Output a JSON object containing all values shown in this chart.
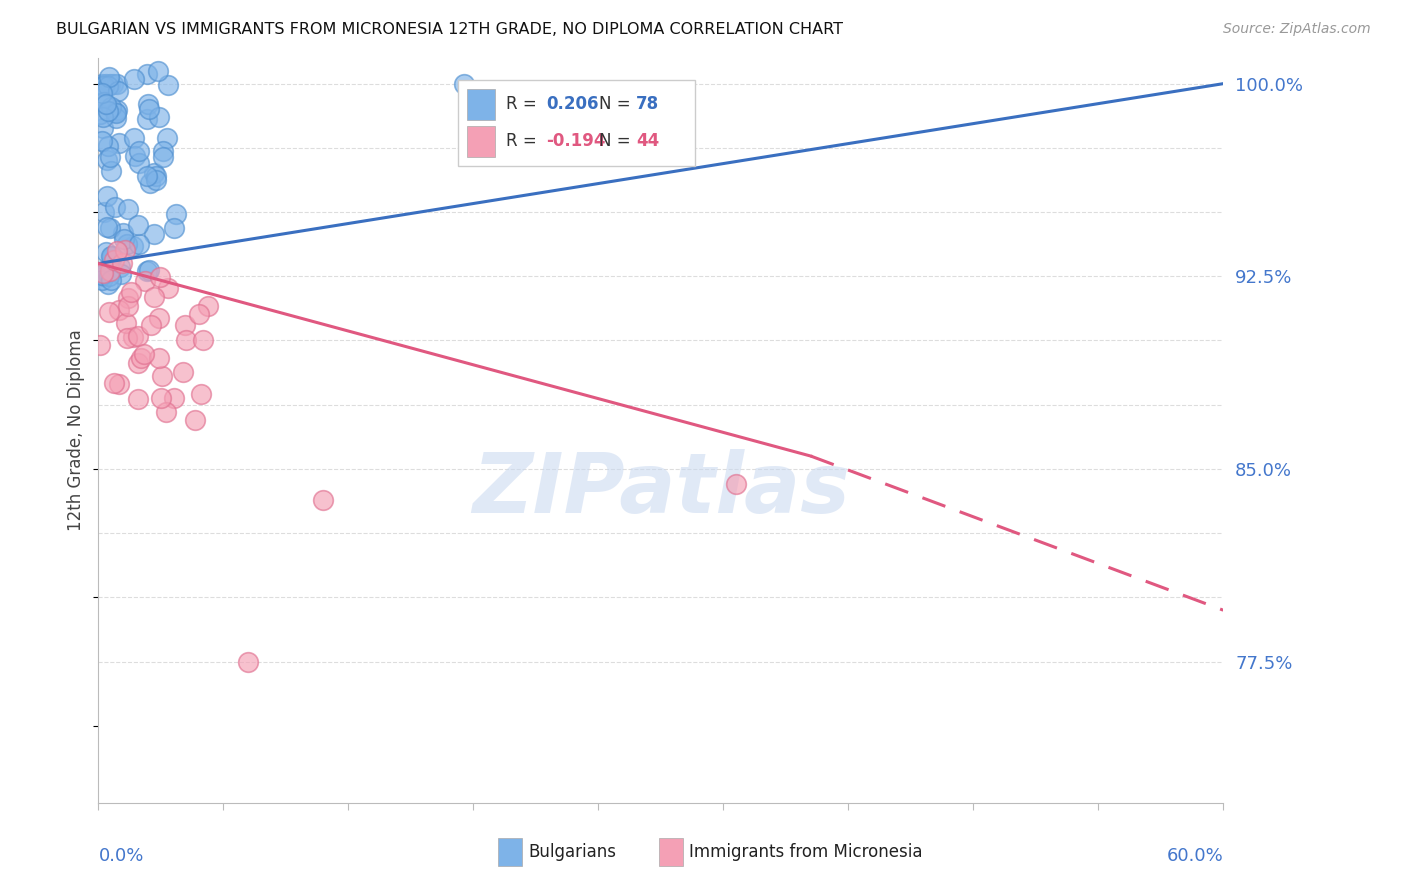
{
  "title": "BULGARIAN VS IMMIGRANTS FROM MICRONESIA 12TH GRADE, NO DIPLOMA CORRELATION CHART",
  "source": "Source: ZipAtlas.com",
  "ylabel": "12th Grade, No Diploma",
  "xmin": 0.0,
  "xmax": 0.6,
  "ymin": 0.72,
  "ymax": 1.01,
  "blue_color": "#7EB3E8",
  "pink_color": "#F4A0B5",
  "blue_scatter_edge": "#5090D0",
  "pink_scatter_edge": "#E07090",
  "blue_line_color": "#3A6FC0",
  "pink_line_color": "#E05880",
  "axis_label_color": "#4477CC",
  "grid_color": "#DDDDDD",
  "ytick_vals": [
    0.775,
    0.8,
    0.825,
    0.85,
    0.875,
    0.9,
    0.925,
    0.95,
    0.975,
    1.0
  ],
  "ytick_show": [
    0.775,
    0.85,
    0.925,
    1.0
  ],
  "ytick_label_map": {
    "0.775": "77.5%",
    "0.850": "85.0%",
    "0.925": "92.5%",
    "1.000": "100.0%"
  },
  "blue_trend": [
    0.0,
    0.6,
    0.93,
    1.0
  ],
  "pink_trend_solid": [
    0.0,
    0.38,
    0.93,
    0.855
  ],
  "pink_trend_dash": [
    0.38,
    0.6,
    0.855,
    0.795
  ],
  "watermark_text": "ZIPatlas",
  "legend_r1": "R = ",
  "legend_v1": "0.206",
  "legend_n1_label": "N = ",
  "legend_n1": "78",
  "legend_r2": "R = ",
  "legend_v2": "-0.194",
  "legend_n2_label": "N = ",
  "legend_n2": "44"
}
